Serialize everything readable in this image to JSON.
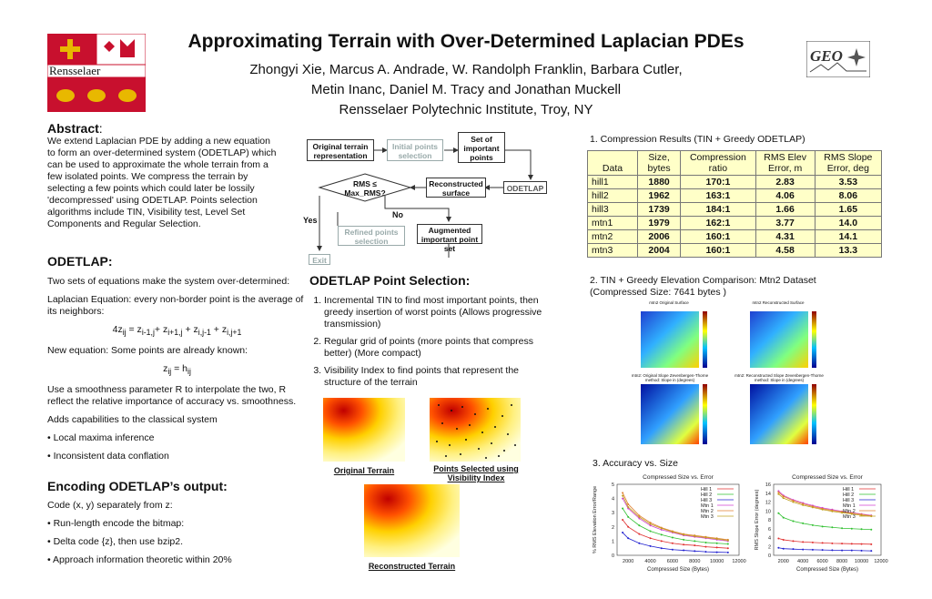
{
  "header": {
    "title": "Approximating Terrain with Over-Determined Laplacian PDEs",
    "authors_line1": "Zhongyi Xie, Marcus A. Andrade, W. Randolph Franklin, Barbara Cutler,",
    "authors_line2": "Metin Inanc, Daniel M. Tracy and Jonathan Muckell",
    "affiliation": "Rensselaer Polytechnic Institute, Troy, NY",
    "left_logo_text": "Rensselaer",
    "right_logo_text": "GEO"
  },
  "abstract": {
    "heading": "Abstract",
    "text": "We extend Laplacian PDE by adding a new equation to form an over-determined system (ODETLAP) which can be used to approximate the whole terrain from a few isolated points. We compress the terrain by selecting a few points which could later be lossily 'decompressed' using ODETLAP. Points selection algorithms include TIN, Visibility test, Level Set Components and Regular Selection."
  },
  "flowchart": {
    "original": "Original terrain representation",
    "initial": "Initial points selection",
    "set": "Set of important points",
    "rms": "RMS ≤ Max_RMS?",
    "reconstructed": "Reconstructed surface",
    "odetlap": "ODETLAP",
    "no": "No",
    "yes": "Yes",
    "refined": "Refined points selection",
    "augmented": "Augmented important point set",
    "exit": "Exit"
  },
  "odetlap": {
    "heading": "ODETLAP:",
    "p1": "Two sets of equations make the system over-determined:",
    "p2": "Laplacian Equation: every non-border point is the average of its neighbors:",
    "eq1_lhs": "4z",
    "eq1_lhs_sub": "ij",
    "eq1_rhs_1": " = z",
    "eq1_rhs_1_sub": "i-1,j",
    "eq1_rhs_2": "+ z",
    "eq1_rhs_2_sub": "i+1,j",
    "eq1_rhs_3": " + z",
    "eq1_rhs_3_sub": "i,j-1",
    "eq1_rhs_4": " + z",
    "eq1_rhs_4_sub": "i,j+1",
    "p3": "New equation: Some points are already known:",
    "eq2_l": "z",
    "eq2_l_sub": "ij",
    "eq2_m": " = h",
    "eq2_r_sub": "ij",
    "p4": "Use a smoothness parameter R to interpolate the two, R reflect the relative importance of accuracy vs. smoothness.",
    "p5": "Adds capabilities to the classical system",
    "p6": "• Local maxima inference",
    "p7": "• Inconsistent data conflation"
  },
  "encoding": {
    "heading": "Encoding ODETLAP’s output:",
    "p1": "Code (x, y) separately from z:",
    "p2": "• Run-length encode the bitmap:",
    "p3": "• Delta code {z}, then use bzip2.",
    "p4": "• Approach information theoretic within 20%"
  },
  "selection": {
    "heading": "ODETLAP Point Selection:",
    "items": [
      "Incremental TIN to find most important points, then greedy insertion of worst points (Allows progressive transmission)",
      "Regular grid of points (more points that compress better) (More compact)",
      "Visibility Index to find points that represent the structure of the terrain"
    ],
    "cap_original": "Original Terrain",
    "cap_points": "Points Selected using Visibility Index",
    "cap_reconstructed": "Reconstructed Terrain"
  },
  "results": {
    "heading1": "1. Compression Results (TIN + Greedy ODETLAP)",
    "columns": [
      "Data",
      "Size, bytes",
      "Compression ratio",
      "RMS Elev Error, m",
      "RMS Slope Error, deg"
    ],
    "rows": [
      [
        "hill1",
        "1880",
        "170:1",
        "2.83",
        "3.53"
      ],
      [
        "hill2",
        "1962",
        "163:1",
        "4.06",
        "8.06"
      ],
      [
        "hill3",
        "1739",
        "184:1",
        "1.66",
        "1.65"
      ],
      [
        "mtn1",
        "1979",
        "162:1",
        "3.77",
        "14.0"
      ],
      [
        "mtn2",
        "2006",
        "160:1",
        "4.31",
        "14.1"
      ],
      [
        "mtn3",
        "2004",
        "160:1",
        "4.58",
        "13.3"
      ]
    ],
    "heading2": "2. TIN + Greedy Elevation Comparison: Mtn2 Dataset (Compressed Size: 7641 bytes )",
    "map_title_1": "mtn2 Original Surface",
    "map_title_2": "mtn2 Reconstructed Surface",
    "map_title_3": "mtn2: Original Slope Zevenbergen-Thorne method: Slope in (degrees)",
    "map_title_4": "mtn2: Reconstructed Slope Zevenbergen-Thorne method: Slope in (degrees)",
    "heading3": "3. Accuracy vs. Size"
  },
  "chart_data": [
    {
      "type": "line",
      "title": "Compressed Size vs. Error",
      "xlabel": "Compressed Size (Bytes)",
      "ylabel": "% RMS Elevation Error/Range",
      "xlim": [
        1000,
        12000
      ],
      "ylim": [
        0,
        5
      ],
      "xticks": [
        2000,
        4000,
        6000,
        8000,
        10000,
        12000
      ],
      "yticks": [
        0,
        1,
        2,
        3,
        4,
        5
      ],
      "legend": "top-right",
      "series": [
        {
          "name": "Hill 1",
          "color": "#e03030",
          "x": [
            1500,
            2000,
            3000,
            4000,
            5000,
            6000,
            7000,
            8000,
            9000,
            10000,
            11000
          ],
          "y": [
            2.5,
            2.0,
            1.5,
            1.2,
            1.0,
            0.85,
            0.75,
            0.7,
            0.6,
            0.55,
            0.5
          ]
        },
        {
          "name": "Hill 2",
          "color": "#30c030",
          "x": [
            1500,
            2000,
            3000,
            4000,
            5000,
            6000,
            7000,
            8000,
            9000,
            10000,
            11000
          ],
          "y": [
            3.3,
            2.7,
            2.1,
            1.7,
            1.45,
            1.25,
            1.1,
            1.0,
            0.9,
            0.85,
            0.8
          ]
        },
        {
          "name": "Hill 3",
          "color": "#2020d0",
          "x": [
            1500,
            2000,
            3000,
            4000,
            5000,
            6000,
            7000,
            8000,
            9000,
            10000,
            11000
          ],
          "y": [
            1.6,
            1.2,
            0.85,
            0.65,
            0.5,
            0.4,
            0.35,
            0.3,
            0.25,
            0.22,
            0.2
          ]
        },
        {
          "name": "Mtn 1",
          "color": "#d040d0",
          "x": [
            1500,
            2000,
            3000,
            4000,
            5000,
            6000,
            7000,
            8000,
            9000,
            10000,
            11000
          ],
          "y": [
            4.0,
            3.3,
            2.6,
            2.1,
            1.8,
            1.6,
            1.4,
            1.3,
            1.2,
            1.1,
            1.0
          ]
        },
        {
          "name": "Mtn 2",
          "color": "#e08030",
          "x": [
            1500,
            2000,
            3000,
            4000,
            5000,
            6000,
            7000,
            8000,
            9000,
            10000,
            11000
          ],
          "y": [
            4.4,
            3.6,
            2.8,
            2.3,
            1.95,
            1.7,
            1.5,
            1.4,
            1.3,
            1.2,
            1.1
          ]
        },
        {
          "name": "Mtn 3",
          "color": "#c0a020",
          "x": [
            1500,
            2000,
            3000,
            4000,
            5000,
            6000,
            7000,
            8000,
            9000,
            10000,
            11000
          ],
          "y": [
            4.2,
            3.4,
            2.7,
            2.2,
            1.9,
            1.65,
            1.45,
            1.35,
            1.25,
            1.15,
            1.05
          ]
        }
      ]
    },
    {
      "type": "line",
      "title": "Compressed Size vs. Error",
      "xlabel": "Compressed Size (Bytes)",
      "ylabel": "RMS Slope Error (degrees)",
      "xlim": [
        1000,
        12000
      ],
      "ylim": [
        0,
        16
      ],
      "xticks": [
        2000,
        4000,
        6000,
        8000,
        10000,
        12000
      ],
      "yticks": [
        0,
        2,
        4,
        6,
        8,
        10,
        12,
        14,
        16
      ],
      "legend": "top-right",
      "series": [
        {
          "name": "Hill 1",
          "color": "#e03030",
          "x": [
            1500,
            2000,
            3000,
            4000,
            5000,
            6000,
            7000,
            8000,
            9000,
            10000,
            11000
          ],
          "y": [
            3.8,
            3.5,
            3.2,
            3.0,
            2.9,
            2.8,
            2.7,
            2.65,
            2.6,
            2.55,
            2.5
          ]
        },
        {
          "name": "Hill 2",
          "color": "#30c030",
          "x": [
            1500,
            2000,
            3000,
            4000,
            5000,
            6000,
            7000,
            8000,
            9000,
            10000,
            11000
          ],
          "y": [
            9.5,
            8.5,
            7.7,
            7.2,
            6.8,
            6.5,
            6.3,
            6.1,
            6.0,
            5.9,
            5.8
          ]
        },
        {
          "name": "Hill 3",
          "color": "#2020d0",
          "x": [
            1500,
            2000,
            3000,
            4000,
            5000,
            6000,
            7000,
            8000,
            9000,
            10000,
            11000
          ],
          "y": [
            1.7,
            1.5,
            1.4,
            1.3,
            1.25,
            1.2,
            1.15,
            1.1,
            1.1,
            1.05,
            1.0
          ]
        },
        {
          "name": "Mtn 1",
          "color": "#d040d0",
          "x": [
            1500,
            2000,
            3000,
            4000,
            5000,
            6000,
            7000,
            8000,
            9000,
            10000,
            11000
          ],
          "y": [
            14.5,
            13.5,
            12.5,
            11.8,
            11.2,
            10.7,
            10.3,
            9.9,
            9.6,
            9.3,
            9.0
          ]
        },
        {
          "name": "Mtn 2",
          "color": "#e08030",
          "x": [
            1500,
            2000,
            3000,
            4000,
            5000,
            6000,
            7000,
            8000,
            9000,
            10000,
            11000
          ],
          "y": [
            14.2,
            13.3,
            12.3,
            11.6,
            11.0,
            10.5,
            10.1,
            9.8,
            9.5,
            9.2,
            8.9
          ]
        },
        {
          "name": "Mtn 3",
          "color": "#c0a020",
          "x": [
            1500,
            2000,
            3000,
            4000,
            5000,
            6000,
            7000,
            8000,
            9000,
            10000,
            11000
          ],
          "y": [
            13.8,
            12.9,
            12.0,
            11.3,
            10.8,
            10.3,
            9.9,
            9.6,
            9.3,
            9.0,
            8.8
          ]
        }
      ]
    }
  ]
}
